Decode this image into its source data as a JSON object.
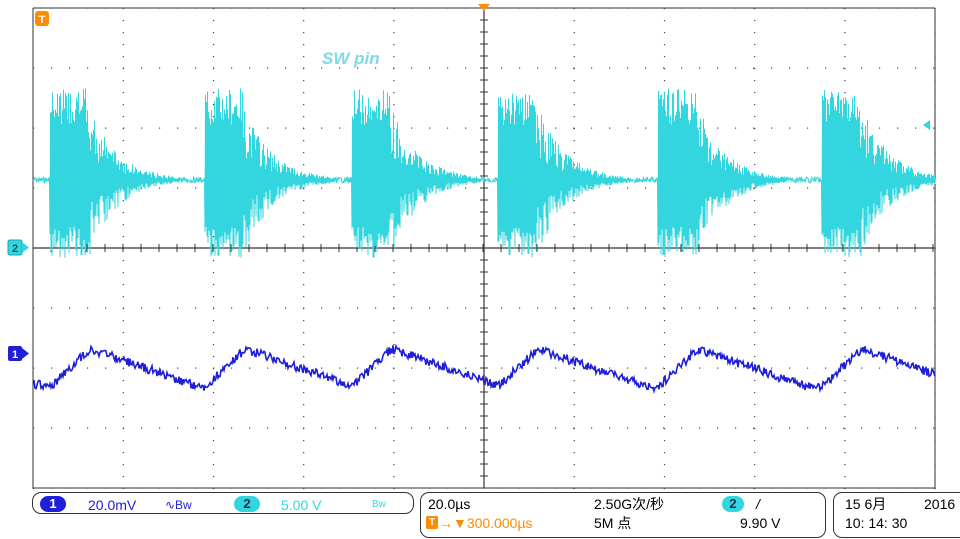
{
  "screen": {
    "background": "#ffffff",
    "grid_color": "#333333",
    "trace_ch2_color": "#33d6de",
    "trace_ch1_color": "#1f1fd8",
    "trigger_color": "#ff8c00"
  },
  "waveform_label": "SW pin",
  "markers": {
    "trigger_marker": "T",
    "ch2_marker": "2",
    "ch1_marker": "1"
  },
  "channels": [
    {
      "id": "1",
      "scale": "20.0mV",
      "coupling": "∿Bw",
      "color": "#1f1fd8"
    },
    {
      "id": "2",
      "scale": "5.00 V",
      "coupling": "Bw",
      "color": "#33d6de"
    }
  ],
  "timebase": {
    "scale": "20.0µs",
    "trigger_position_icon": "T",
    "trigger_position": "→▼300.000µs",
    "sample_rate": "2.50G次/秒",
    "record_length": "5M 点"
  },
  "trigger": {
    "source": "2",
    "slope": "/",
    "level": "9.90 V"
  },
  "datetime": {
    "date": "15 6月",
    "year": "2016",
    "time": "10: 14: 30"
  }
}
